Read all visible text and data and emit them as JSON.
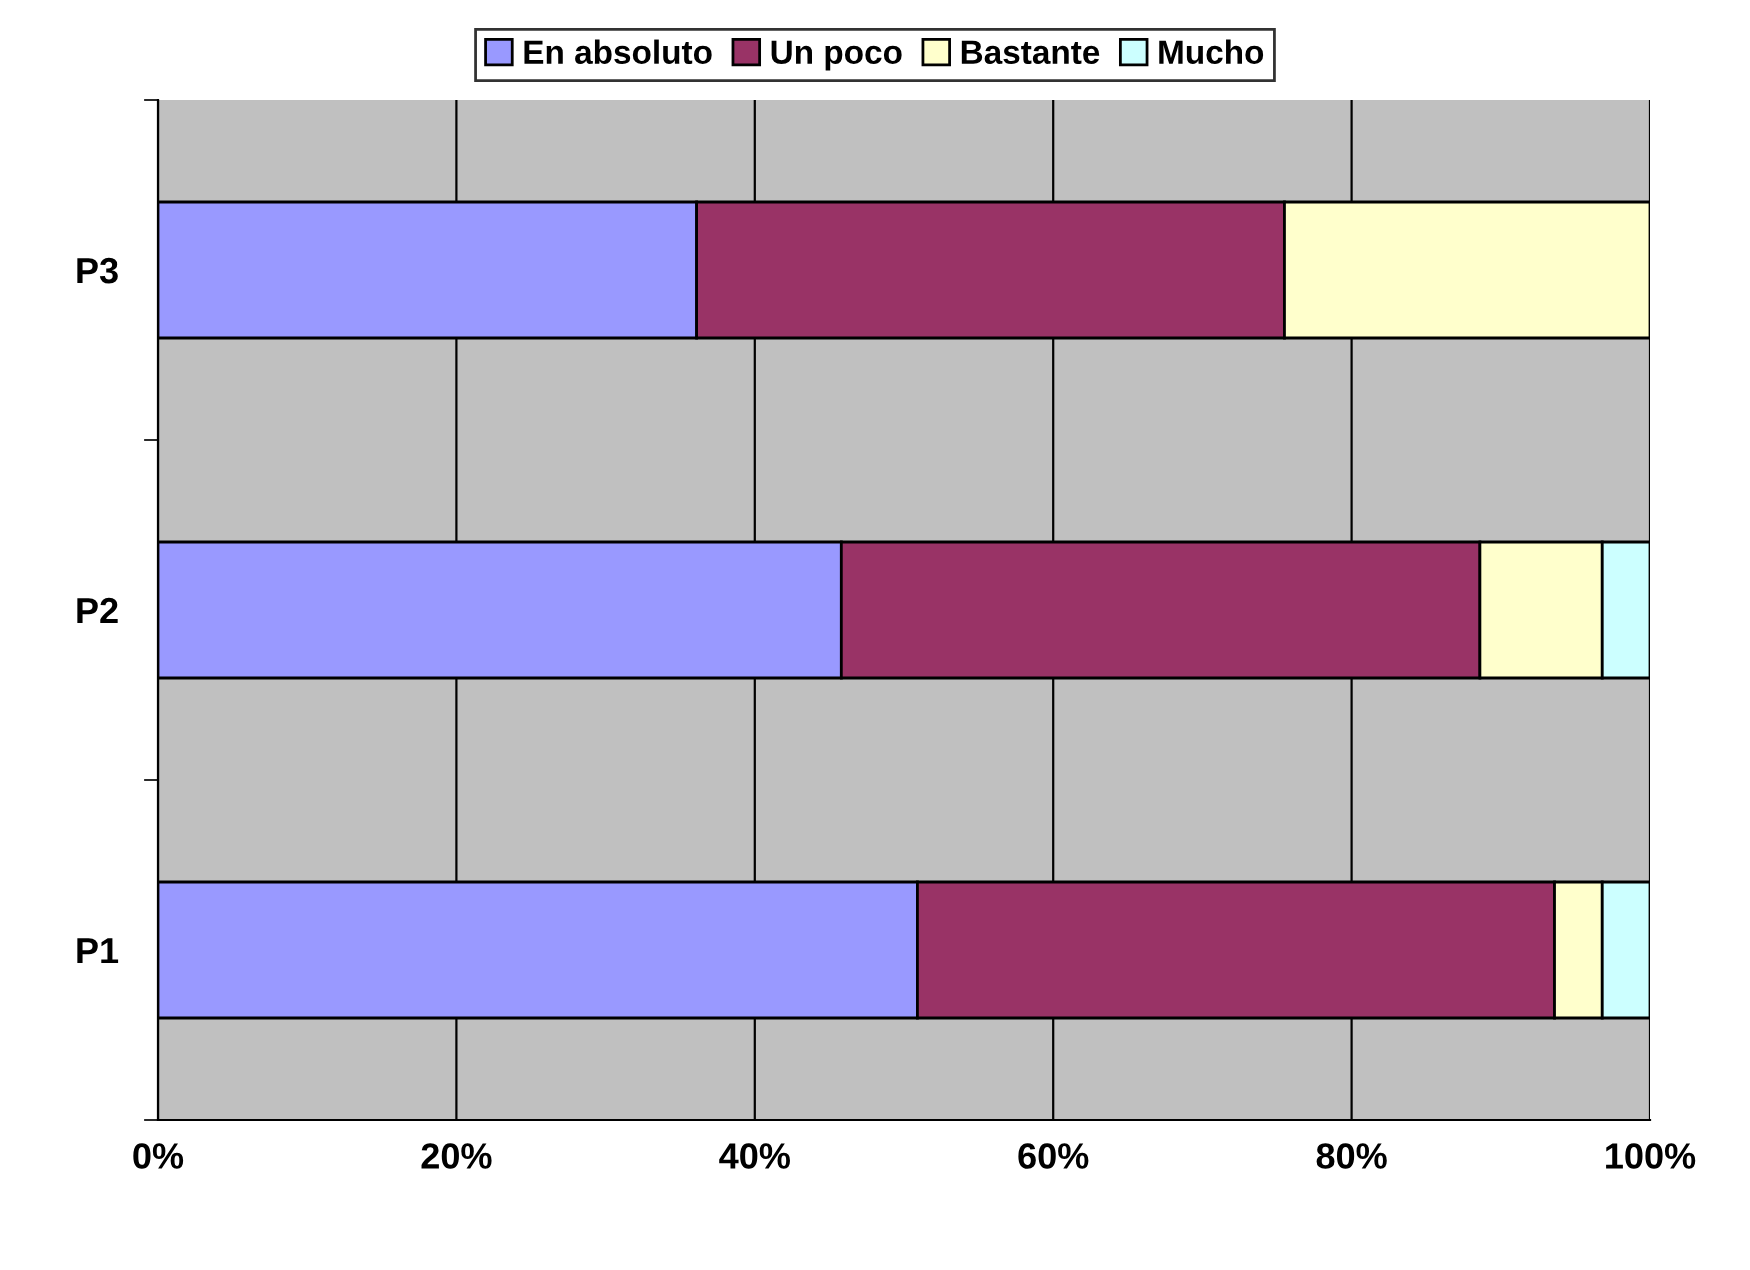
{
  "chart_data": {
    "type": "bar",
    "orientation": "horizontal",
    "stacked": true,
    "categories": [
      "P3",
      "P2",
      "P1"
    ],
    "series": [
      {
        "name": "En absoluto",
        "color": "#9999ff",
        "values": [
          36.1,
          45.8,
          50.9
        ]
      },
      {
        "name": "Un poco",
        "color": "#993366",
        "values": [
          39.4,
          42.8,
          42.7
        ]
      },
      {
        "name": "Bastante",
        "color": "#ffffcc",
        "values": [
          24.5,
          8.2,
          3.2
        ]
      },
      {
        "name": "Mucho",
        "color": "#ccffff",
        "values": [
          null,
          3.2,
          3.2
        ]
      }
    ],
    "xlim": [
      0,
      100
    ],
    "xticks": [
      {
        "value": 0,
        "label": "0%"
      },
      {
        "value": 20,
        "label": "20%"
      },
      {
        "value": 40,
        "label": "40%"
      },
      {
        "value": 60,
        "label": "60%"
      },
      {
        "value": 80,
        "label": "80%"
      },
      {
        "value": 100,
        "label": "100%"
      }
    ],
    "grid": "x",
    "legend": "top"
  }
}
